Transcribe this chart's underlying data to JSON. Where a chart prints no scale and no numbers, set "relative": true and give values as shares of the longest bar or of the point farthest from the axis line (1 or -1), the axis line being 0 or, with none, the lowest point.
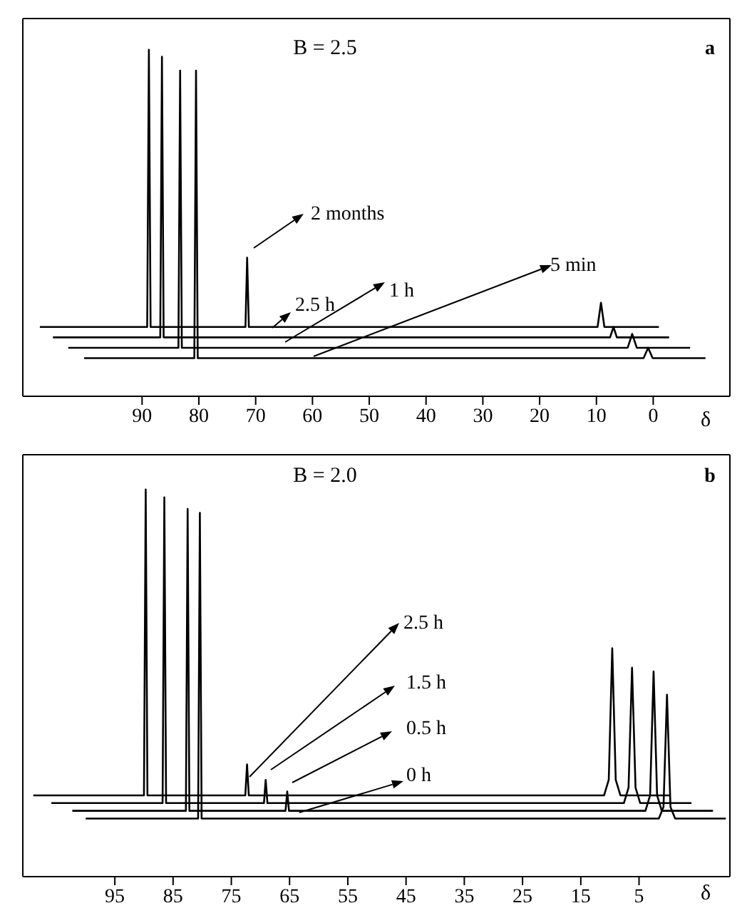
{
  "chart_data": [
    {
      "type": "line",
      "title": "B = 2.5",
      "xlabel": "δ",
      "legend": "center",
      "annotations": [
        "a"
      ],
      "relative": true,
      "xlim": [
        111,
        -13.5
      ],
      "xticks": [
        90,
        80,
        70,
        60,
        50,
        40,
        30,
        20,
        10,
        0
      ],
      "series": [
        {
          "name": "2 months",
          "color": "#000000",
          "x": [
            108,
            89.1,
            88.8,
            88.5,
            71.8,
            71.5,
            71.2,
            9.8,
            9.2,
            8.6,
            -1.0
          ],
          "values": [
            0.2,
            0.2,
            1,
            0.2,
            0.2,
            0.4,
            0.2,
            0.2,
            0.27,
            0.2,
            0.2
          ]
        },
        {
          "name": "2.5 h",
          "color": "#000000",
          "x": [
            105.7,
            86.8,
            86.5,
            86.2,
            7.6,
            7.0,
            6.4,
            -2.8
          ],
          "values": [
            0.17,
            0.17,
            0.98,
            0.17,
            0.17,
            0.2,
            0.17,
            0.17
          ]
        },
        {
          "name": "1 h",
          "color": "#000000",
          "x": [
            103,
            83.6,
            83.3,
            83.0,
            4.5,
            3.7,
            2.9,
            -6.5
          ],
          "values": [
            0.14,
            0.14,
            0.94,
            0.14,
            0.14,
            0.18,
            0.14,
            0.14
          ]
        },
        {
          "name": "5 min",
          "color": "#000000",
          "x": [
            100.2,
            80.8,
            80.5,
            80.2,
            1.7,
            0.9,
            0.1,
            -9.2
          ],
          "values": [
            0.11,
            0.11,
            0.94,
            0.11,
            0.11,
            0.14,
            0.11,
            0.11
          ]
        }
      ]
    },
    {
      "type": "line",
      "title": "B = 2.0",
      "xlabel": "δ",
      "legend": "center",
      "annotations": [
        "b"
      ],
      "relative": true,
      "xlim": [
        110.8,
        -10.6
      ],
      "xticks": [
        95,
        85,
        75,
        65,
        55,
        45,
        35,
        25,
        15,
        5
      ],
      "series": [
        {
          "name": "2.5 h",
          "color": "#000000",
          "x": [
            109,
            90,
            89.7,
            89.4,
            72.6,
            72.3,
            72.0,
            11,
            10.2,
            9.6,
            9.0,
            8.2,
            -0.4
          ],
          "values": [
            0.21,
            0.21,
            1,
            0.21,
            0.21,
            0.29,
            0.21,
            0.21,
            0.25,
            0.59,
            0.25,
            0.21,
            0.21
          ]
        },
        {
          "name": "1.5 h",
          "color": "#000000",
          "x": [
            105.9,
            86.8,
            86.5,
            86.2,
            69.4,
            69.1,
            68.8,
            7.6,
            6.8,
            6.2,
            5.6,
            4.8,
            -4
          ],
          "values": [
            0.19,
            0.19,
            0.98,
            0.19,
            0.19,
            0.25,
            0.19,
            0.19,
            0.23,
            0.54,
            0.23,
            0.19,
            0.19
          ]
        },
        {
          "name": "0.5 h",
          "color": "#000000",
          "x": [
            102.3,
            82.8,
            82.5,
            82.2,
            65.7,
            65.4,
            65.1,
            3.9,
            3.1,
            2.5,
            1.9,
            1.1,
            -7.7
          ],
          "values": [
            0.17,
            0.17,
            0.95,
            0.17,
            0.17,
            0.22,
            0.17,
            0.17,
            0.21,
            0.53,
            0.21,
            0.17,
            0.17
          ]
        },
        {
          "name": "0 h",
          "color": "#000000",
          "x": [
            100,
            80.7,
            80.4,
            80.1,
            1.6,
            0.8,
            0.2,
            -0.4,
            -1.2,
            -9.9
          ],
          "values": [
            0.15,
            0.15,
            0.94,
            0.15,
            0.15,
            0.18,
            0.47,
            0.18,
            0.15,
            0.15
          ]
        }
      ]
    }
  ]
}
